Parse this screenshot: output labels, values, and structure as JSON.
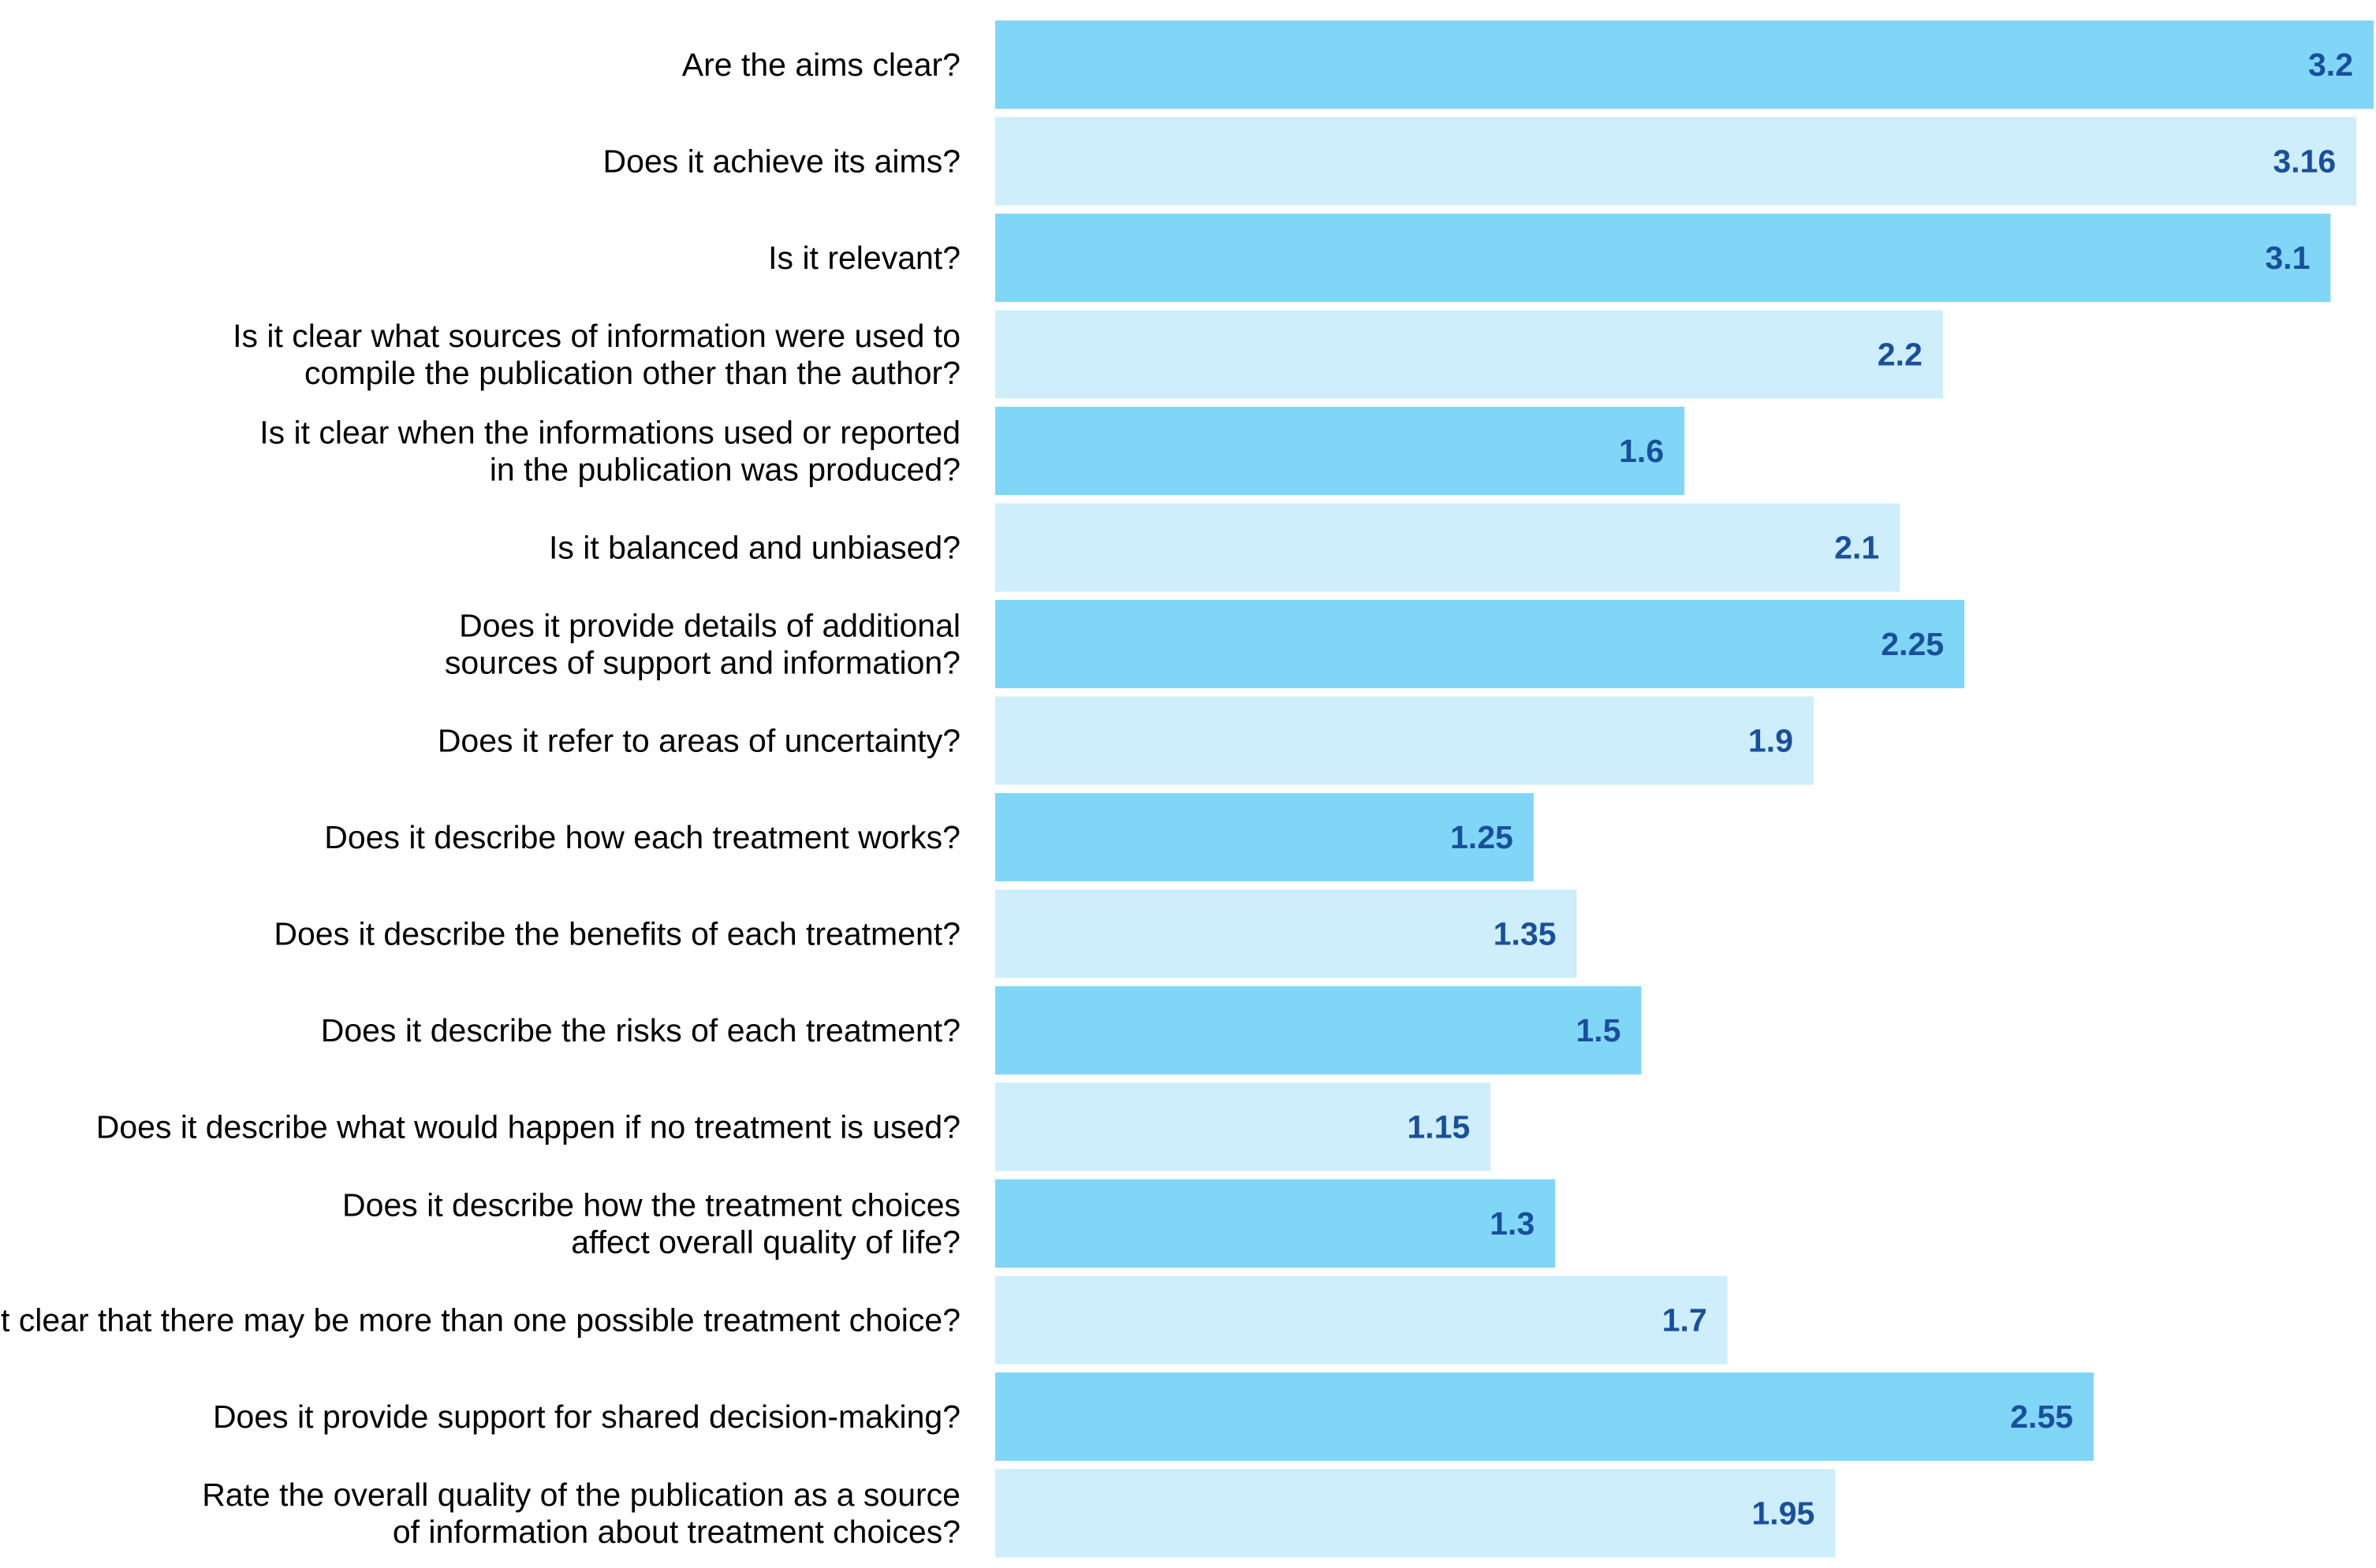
{
  "chart_data": {
    "type": "bar",
    "orientation": "horizontal",
    "title": "",
    "xlabel": "",
    "ylabel": "",
    "xlim": [
      0,
      3.2
    ],
    "grid": false,
    "legend": "none",
    "categories": [
      [
        "Are the aims clear?"
      ],
      [
        "Does it achieve its aims?"
      ],
      [
        "Is it relevant?"
      ],
      [
        "Is it clear what sources of information were used to",
        "compile the publication other than the author?"
      ],
      [
        "Is it clear when the informations used or reported",
        "in the publication was produced?"
      ],
      [
        "Is it balanced and unbiased?"
      ],
      [
        "Does it provide details of additional",
        "sources of support and information?"
      ],
      [
        "Does it refer to areas of uncertainty?"
      ],
      [
        "Does it describe how each treatment works?"
      ],
      [
        "Does it describe the benefits of each treatment?"
      ],
      [
        "Does it describe the risks of each treatment?"
      ],
      [
        "Does it describe what would happen if no treatment is used?"
      ],
      [
        "Does it describe how the treatment choices",
        "affect overall quality of life?"
      ],
      [
        "Is It clear that there may be more than one possible treatment choice?"
      ],
      [
        "Does it provide support for shared decision-making?"
      ],
      [
        "Rate the overall quality of the publication as a source",
        "of information about treatment choices?"
      ]
    ],
    "values": [
      3.2,
      3.16,
      3.1,
      2.2,
      1.6,
      2.1,
      2.25,
      1.9,
      1.25,
      1.35,
      1.5,
      1.15,
      1.3,
      1.7,
      2.55,
      1.95
    ],
    "value_labels": [
      "3.2",
      "3.16",
      "3.1",
      "2.2",
      "1.6",
      "2.1",
      "2.25",
      "1.9",
      "1.25",
      "1.35",
      "1.5",
      "1.15",
      "1.3",
      "1.7",
      "2.55",
      "1.95"
    ]
  },
  "colors": {
    "bar_dark": "#80d6f7",
    "bar_light": "#cdeefa",
    "value_text": "#1a4f9c",
    "label_text": "#000000"
  }
}
